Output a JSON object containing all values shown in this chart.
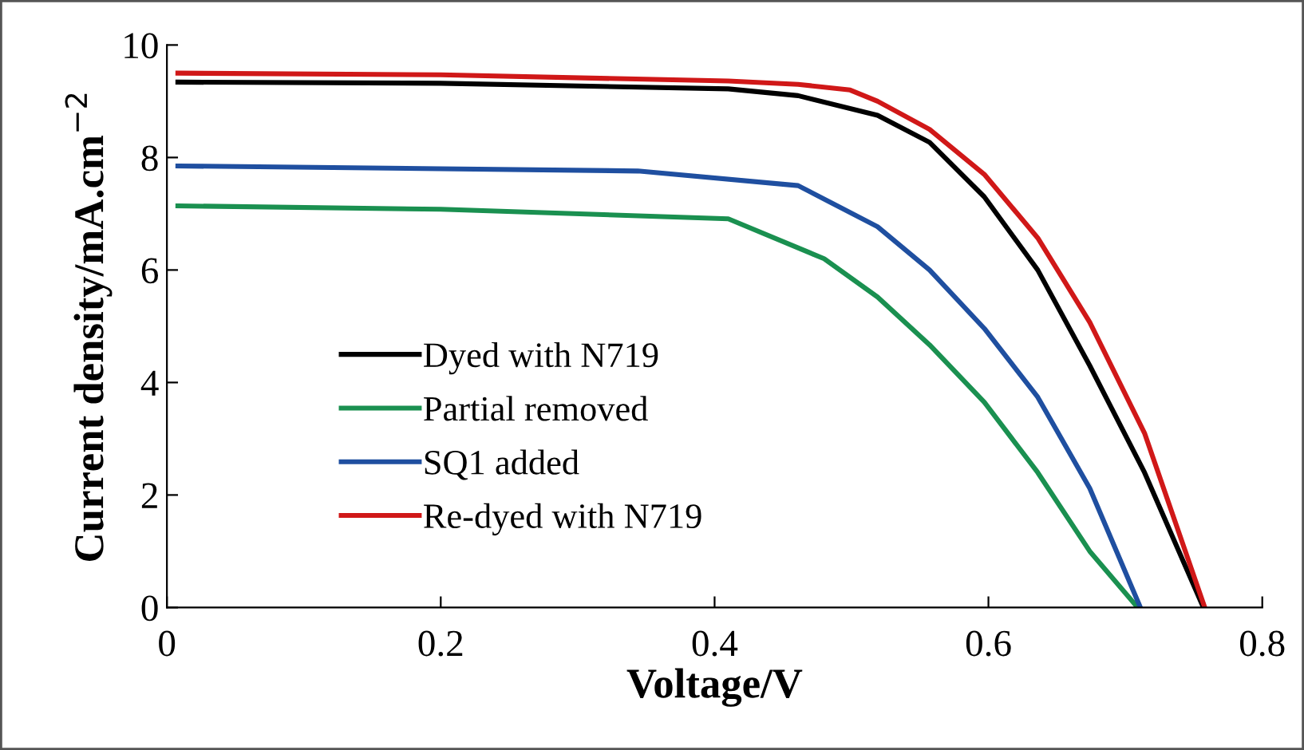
{
  "chart_data": {
    "type": "line",
    "xlabel": "Voltage/V",
    "ylabel": "Current density/mA.cm$^{−2}$",
    "xlim": [
      0,
      0.8
    ],
    "ylim": [
      0,
      10
    ],
    "xticks": [
      0,
      0.2,
      0.4,
      0.6,
      0.8
    ],
    "yticks": [
      0,
      2,
      4,
      6,
      8,
      10
    ],
    "grid": false,
    "legend": "left",
    "marker": "none",
    "line_style": "solid",
    "series": [
      {
        "name": "Dyed with N719",
        "color": "#000000",
        "x": [
          0.008,
          0.2,
          0.41,
          0.461,
          0.519,
          0.557,
          0.597,
          0.636,
          0.674,
          0.714,
          0.757
        ],
        "values": [
          9.34,
          9.32,
          9.22,
          9.1,
          8.75,
          8.27,
          7.3,
          6.0,
          4.3,
          2.4,
          0
        ]
      },
      {
        "name": "Partial removed",
        "color": "#1a9050",
        "x": [
          0.008,
          0.2,
          0.41,
          0.48,
          0.519,
          0.557,
          0.597,
          0.636,
          0.674,
          0.709
        ],
        "values": [
          7.14,
          7.08,
          6.91,
          6.2,
          5.52,
          4.67,
          3.65,
          2.4,
          1.0,
          0
        ]
      },
      {
        "name": "SQ1 added",
        "color": "#1f4fa0",
        "x": [
          0.008,
          0.2,
          0.344,
          0.461,
          0.519,
          0.557,
          0.597,
          0.636,
          0.674,
          0.711
        ],
        "values": [
          7.85,
          7.8,
          7.76,
          7.5,
          6.77,
          6.0,
          4.96,
          3.74,
          2.12,
          0
        ]
      },
      {
        "name": "Re-dyed with N719",
        "color": "#d01818",
        "x": [
          0.008,
          0.2,
          0.41,
          0.461,
          0.499,
          0.519,
          0.557,
          0.597,
          0.636,
          0.674,
          0.714,
          0.758
        ],
        "values": [
          9.5,
          9.47,
          9.36,
          9.3,
          9.2,
          9.0,
          8.5,
          7.7,
          6.57,
          5.07,
          3.1,
          0
        ]
      }
    ]
  }
}
